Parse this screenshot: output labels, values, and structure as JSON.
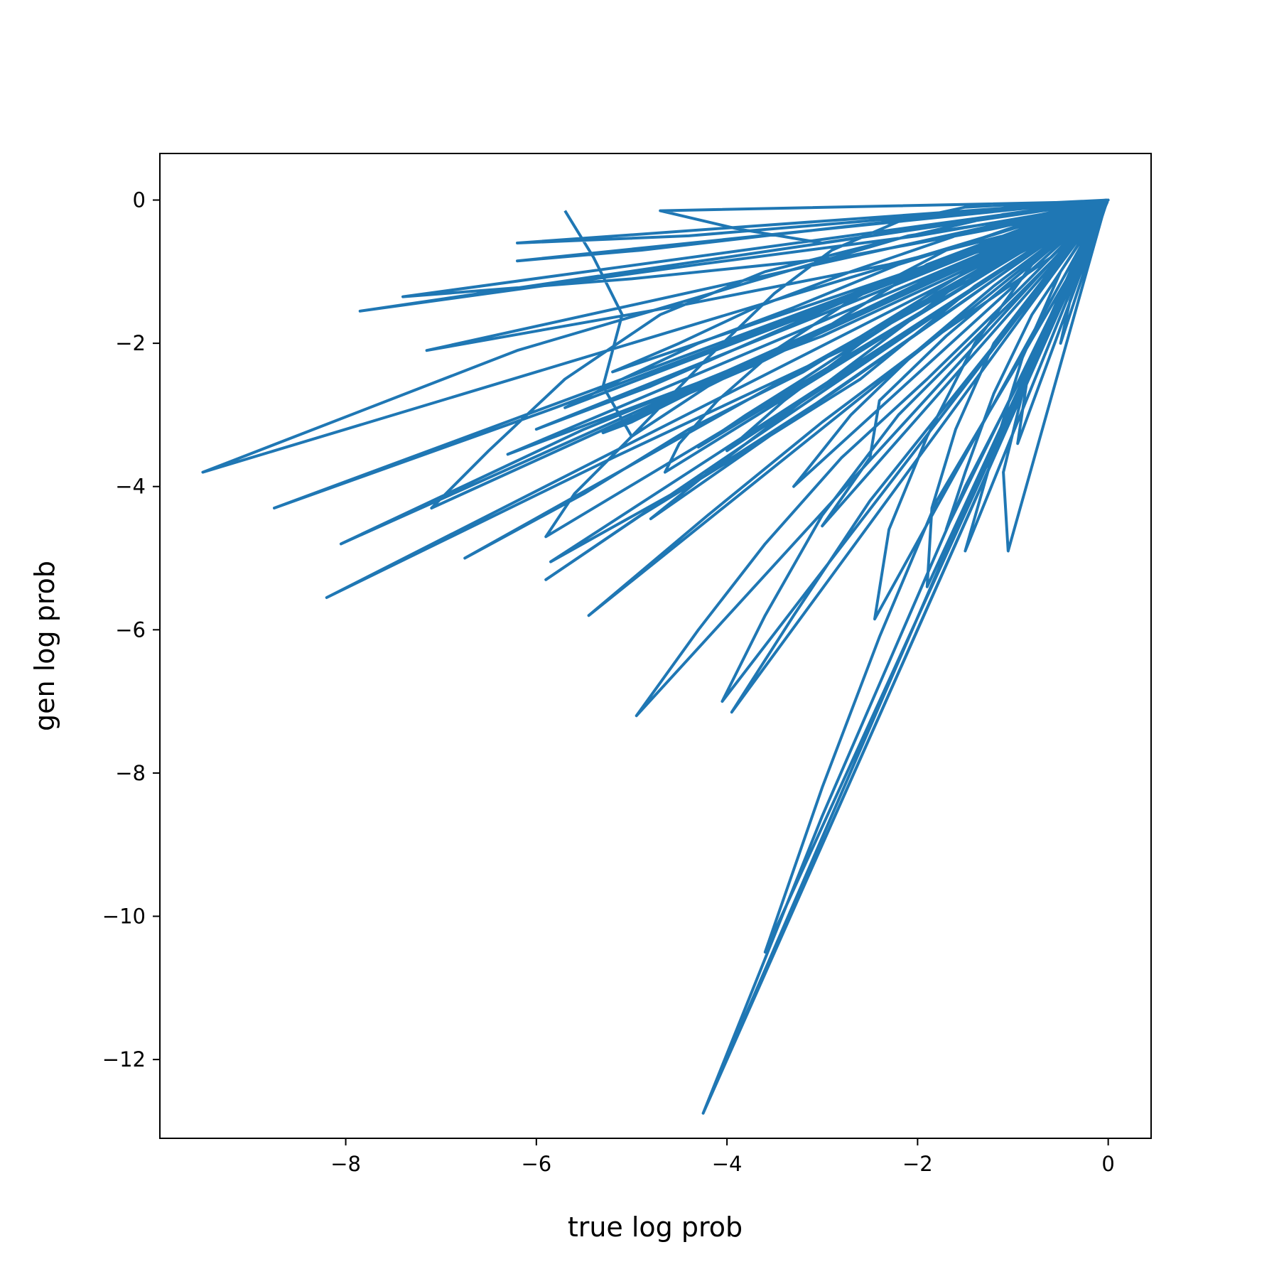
{
  "chart_data": {
    "type": "line",
    "xlabel": "true log prob",
    "ylabel": "gen log prob",
    "xlim": [
      -9.95,
      0.45
    ],
    "ylim": [
      -13.1,
      0.65
    ],
    "xticks": [
      -8,
      -6,
      -4,
      -2,
      0
    ],
    "yticks": [
      0,
      -2,
      -4,
      -6,
      -8,
      -10,
      -12
    ],
    "xtick_labels": [
      "−8",
      "−6",
      "−4",
      "−2",
      "0"
    ],
    "ytick_labels": [
      "0",
      "−2",
      "−4",
      "−6",
      "−8",
      "−10",
      "−12"
    ],
    "grid": false,
    "legend": "none",
    "line_color": "#1f77b4",
    "series": [
      {
        "x": [
          -5.7,
          -5.4,
          -5.1,
          -5.3,
          -5.0,
          -4.2,
          -3.5,
          -2.9,
          -2.2,
          -1.5,
          -0.8,
          0.0,
          -9.5,
          -6.2,
          -3.9,
          -2.1,
          -0.6,
          -0.05,
          -8.75,
          -5.8,
          -3.2,
          -1.6,
          -0.4,
          -0.02,
          -8.2,
          -5.2,
          -2.8,
          -1.3,
          -0.3,
          -0.01,
          -8.05,
          -5.5,
          -3.1,
          -1.9,
          -0.9,
          -0.02,
          -7.85,
          -4.3,
          -2.0,
          -0.7,
          -0.03,
          -7.4,
          -5.0,
          -2.8,
          -1.2,
          -0.2,
          0.0,
          -7.15,
          -4.6,
          -2.3,
          -0.8,
          -0.04,
          -7.1,
          -6.5,
          -5.7,
          -4.7,
          -3.6,
          -2.4,
          -1.1,
          -0.05,
          -6.75,
          -5.5,
          -4.4,
          -3.2,
          -2.1,
          -1.0,
          -0.03,
          -6.3,
          -4.6,
          -3.0,
          -1.7,
          -0.6,
          -0.01,
          -6.2,
          -4.4,
          -2.6,
          -1.0,
          -0.02,
          -6.2,
          -4.9,
          -3.6,
          -2.3,
          -1.0,
          -0.04,
          -6.0,
          -4.8,
          -3.6,
          -2.4,
          -1.1,
          -0.03,
          -5.9,
          -5.6,
          -5.0,
          -4.2,
          -3.3,
          -2.2,
          -1.1,
          -0.05,
          -5.9,
          -4.9,
          -3.8,
          -2.6,
          -1.4,
          -0.02,
          -5.85,
          -4.3,
          -2.9,
          -1.5,
          -0.05,
          -5.7,
          -5.1,
          -4.3,
          -3.3,
          -2.2,
          -1.0,
          -0.02,
          -5.45,
          -4.2,
          -3.0,
          -1.8,
          -0.6,
          -0.01,
          -5.3,
          -5.0,
          -4.4,
          -3.7,
          -2.8,
          -1.7,
          -0.5,
          -0.01,
          -4.95,
          -4.3,
          -3.6,
          -2.8,
          -1.9,
          -0.9,
          -0.03,
          -4.8,
          -4.1,
          -3.3,
          -2.4,
          -1.5,
          -0.5,
          -0.02,
          -4.7,
          -3.9,
          -3.0,
          -2.0,
          -1.0,
          -0.05,
          -4.65,
          -4.5,
          -4.1,
          -3.5,
          -2.7,
          -1.7,
          -0.6,
          -0.02,
          -4.3,
          -3.8,
          -3.2,
          -2.4,
          -1.5,
          -0.5,
          -0.01,
          -4.05,
          -3.6,
          -3.0,
          -2.2,
          -1.3,
          -0.4,
          -0.02,
          -3.95,
          -3.3,
          -2.5,
          -1.6,
          -0.7,
          -0.01,
          -3.6,
          -3.0,
          -2.4,
          -1.8,
          -1.0,
          -0.3,
          -0.01,
          -4.25,
          -3.0,
          -1.5,
          -0.3,
          -0.01,
          -4.25,
          -3.0,
          -1.6,
          -0.4,
          -0.02,
          -3.0,
          -2.5,
          -2.4,
          -1.7,
          -0.9,
          -0.04,
          -2.45,
          -2.3,
          -1.9,
          -1.4,
          -0.8,
          -0.03,
          -1.9,
          -1.85,
          -1.6,
          -1.2,
          -0.5,
          -0.02,
          -1.7,
          -1.5,
          -1.2,
          -0.8,
          -0.3,
          -0.01,
          -1.5,
          -1.2,
          -0.9,
          -0.5,
          -0.02,
          -1.05,
          -1.1,
          -0.9,
          -0.6,
          -0.2,
          -0.01,
          -0.95,
          -0.85,
          -0.6,
          -0.3,
          -0.01,
          -0.5,
          -0.4,
          -0.2,
          -0.01,
          -4.0,
          -3.4,
          -2.6,
          -1.8,
          -1.0,
          -0.1,
          -5.2,
          -4.5,
          -3.7,
          -2.7,
          -1.6,
          -0.5,
          0.0,
          -3.3,
          -2.7,
          -2.0,
          -1.2,
          -0.4,
          0.0
        ],
        "y": [
          -0.15,
          -0.8,
          -1.6,
          -2.6,
          -3.3,
          -2.2,
          -1.3,
          -0.7,
          -0.3,
          -0.1,
          -0.05,
          0.0,
          -3.8,
          -2.1,
          -1.2,
          -0.5,
          -0.2,
          -0.01,
          -4.3,
          -2.9,
          -1.6,
          -0.8,
          -0.3,
          -0.02,
          -5.55,
          -3.6,
          -2.1,
          -1.0,
          -0.3,
          -0.01,
          -4.8,
          -3.2,
          -1.9,
          -0.9,
          -0.4,
          -0.02,
          -1.55,
          -0.9,
          -0.5,
          -0.2,
          -0.01,
          -1.35,
          -1.1,
          -0.8,
          -0.4,
          -0.1,
          0.0,
          -2.1,
          -1.5,
          -0.9,
          -0.4,
          -0.02,
          -4.3,
          -3.5,
          -2.5,
          -1.6,
          -1.0,
          -0.6,
          -0.2,
          -0.01,
          -5.0,
          -4.1,
          -3.2,
          -2.4,
          -1.5,
          -0.6,
          -0.02,
          -3.55,
          -2.7,
          -1.9,
          -1.1,
          -0.4,
          -0.01,
          -0.6,
          -0.5,
          -0.3,
          -0.1,
          0.0,
          -0.85,
          -0.7,
          -0.5,
          -0.3,
          -0.1,
          -0.01,
          -3.2,
          -2.6,
          -1.9,
          -1.2,
          -0.6,
          -0.02,
          -4.7,
          -4.1,
          -3.3,
          -2.6,
          -2.0,
          -1.3,
          -0.6,
          -0.01,
          -5.3,
          -4.4,
          -3.5,
          -2.5,
          -1.2,
          -0.02,
          -5.05,
          -3.9,
          -2.7,
          -1.4,
          -0.03,
          -2.9,
          -2.5,
          -2.0,
          -1.5,
          -0.9,
          -0.4,
          -0.01,
          -5.8,
          -4.4,
          -3.1,
          -1.9,
          -0.8,
          -0.02,
          -3.25,
          -3.1,
          -2.7,
          -2.3,
          -1.7,
          -1.0,
          -0.3,
          -0.01,
          -7.2,
          -6.0,
          -4.8,
          -3.6,
          -2.5,
          -1.2,
          -0.03,
          -4.45,
          -3.7,
          -2.9,
          -2.0,
          -1.1,
          -0.4,
          -0.02,
          -0.15,
          -0.4,
          -0.6,
          -0.4,
          -0.2,
          -0.01,
          -3.8,
          -3.4,
          -2.8,
          -2.1,
          -1.4,
          -0.7,
          -0.2,
          -0.01,
          -3.45,
          -3.0,
          -2.5,
          -1.8,
          -1.1,
          -0.4,
          -0.01,
          -7.0,
          -5.8,
          -4.4,
          -3.0,
          -1.8,
          -0.6,
          -0.02,
          -7.15,
          -5.8,
          -4.2,
          -2.7,
          -1.2,
          -0.02,
          -10.5,
          -8.2,
          -6.1,
          -4.2,
          -2.4,
          -0.8,
          -0.02,
          -12.75,
          -8.6,
          -4.0,
          -0.9,
          -0.03,
          -12.75,
          -8.9,
          -4.6,
          -1.2,
          -0.05,
          -4.55,
          -3.6,
          -2.8,
          -1.9,
          -1.0,
          -0.05,
          -5.85,
          -4.6,
          -3.3,
          -2.0,
          -0.9,
          -0.03,
          -5.4,
          -4.3,
          -3.2,
          -2.0,
          -0.8,
          -0.02,
          -4.6,
          -3.8,
          -2.7,
          -1.6,
          -0.6,
          -0.01,
          -4.9,
          -3.5,
          -2.2,
          -1.0,
          -0.02,
          -4.9,
          -3.8,
          -2.7,
          -1.6,
          -0.6,
          -0.01,
          -3.4,
          -2.5,
          -1.6,
          -0.7,
          -0.01,
          -2.0,
          -1.4,
          -0.7,
          -0.02,
          -3.5,
          -2.8,
          -2.0,
          -1.3,
          -0.7,
          -0.1,
          -2.4,
          -2.0,
          -1.5,
          -1.0,
          -0.5,
          -0.15,
          0.0,
          -4.0,
          -3.0,
          -2.1,
          -1.2,
          -0.4,
          0.0
        ]
      }
    ]
  }
}
